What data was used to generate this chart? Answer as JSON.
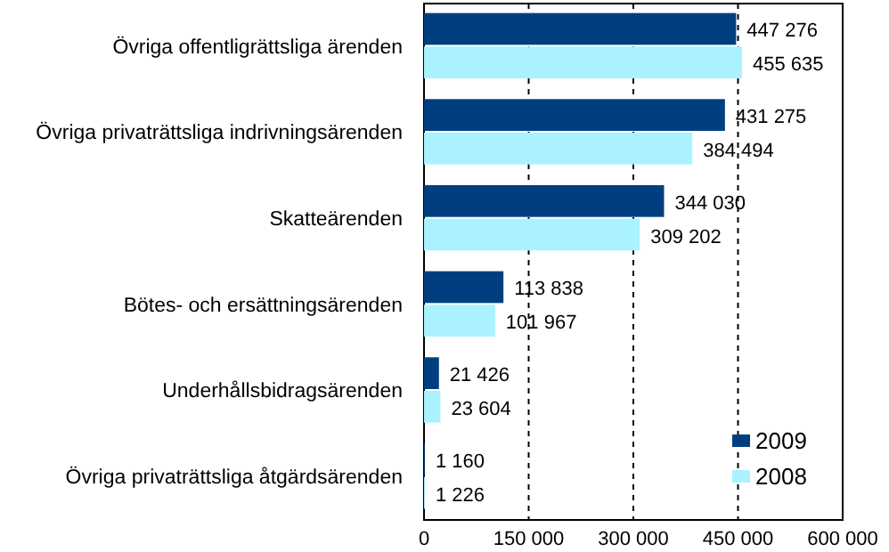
{
  "chart_data": {
    "type": "bar",
    "orientation": "horizontal",
    "categories": [
      "Övriga offentligrättsliga ärenden",
      "Övriga privaträttsliga indrivningsärenden",
      "Skatteärenden",
      "Bötes- och ersättningsärenden",
      "Underhållsbidragsärenden",
      "Övriga privaträttsliga åtgärdsärenden"
    ],
    "series": [
      {
        "name": "2009",
        "color": "#003f7f",
        "values": [
          447276,
          431275,
          344030,
          113838,
          21426,
          1160
        ],
        "value_labels": [
          "447 276",
          "431 275",
          "344 030",
          "113 838",
          "21 426",
          "1 160"
        ]
      },
      {
        "name": "2008",
        "color": "#aaf2ff",
        "values": [
          455635,
          384494,
          309202,
          101967,
          23604,
          1226
        ],
        "value_labels": [
          "455 635",
          "384 494",
          "309 202",
          "101 967",
          "23 604",
          "1 226"
        ]
      }
    ],
    "xlim": [
      0,
      600000
    ],
    "xticks": [
      0,
      {
        "value": 150000,
        "label": "150 000"
      },
      {
        "value": 300000,
        "label": "300 000"
      },
      {
        "value": 450000,
        "label": "450 000"
      },
      {
        "value": 600000,
        "label": "600 000"
      }
    ],
    "grid": "x",
    "legend": "bottom right"
  }
}
